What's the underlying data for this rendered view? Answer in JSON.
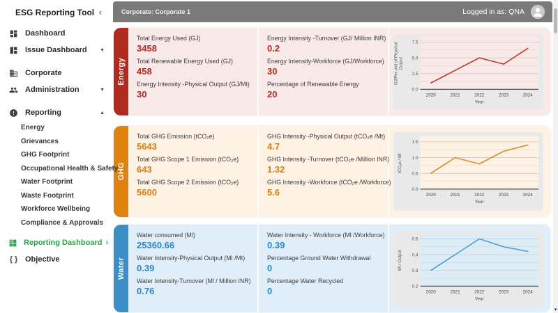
{
  "app": {
    "title": "ESG Reporting Tool",
    "collapse_icon": "‹"
  },
  "topbar": {
    "context_label": "Corporate: Corporate 1",
    "user_label": "Logged in as: QNA"
  },
  "sidebar": {
    "active_color": "#28a745",
    "items": [
      {
        "id": "dashboard",
        "label": "Dashboard",
        "icon": "dashboard-icon"
      },
      {
        "id": "issue-dashboard",
        "label": "Issue Dashboard",
        "icon": "issue-dashboard-icon",
        "chevron": "expand"
      },
      {
        "id": "corporate",
        "label": "Corporate",
        "icon": "corporate-icon",
        "gap_before": true
      },
      {
        "id": "administration",
        "label": "Administration",
        "icon": "administration-icon",
        "chevron": "expand"
      },
      {
        "id": "reporting",
        "label": "Reporting",
        "icon": "reporting-icon",
        "chevron": "collapse",
        "gap_before": true
      }
    ],
    "reporting_children": [
      "Energy",
      "Grievances",
      "GHG Footprint",
      "Occupational Health & Safety",
      "Water Footprint",
      "Waste Footprint",
      "Workforce Wellbeing",
      "Compliance & Approvals"
    ],
    "footer_items": [
      {
        "id": "reporting-dashboard",
        "label": "Reporting Dashboard",
        "icon": "reporting-dashboard-icon",
        "arrow": "›",
        "active": true
      },
      {
        "id": "objective",
        "label": "Objective",
        "icon": "objective-icon"
      }
    ]
  },
  "cards": [
    {
      "id": "energy",
      "tab_label": "Energy",
      "accent": "#b02a20",
      "value_color": "#b22a22",
      "bg": "#fae9e9",
      "metrics": [
        [
          {
            "label": "Total Energy Used (GJ)",
            "value": "3458"
          },
          {
            "label": "Total Renewable Energy Used (GJ)",
            "value": "458"
          },
          {
            "label": "Energy Intensity -Physical Output (GJ/Mt)",
            "value": "30"
          }
        ],
        [
          {
            "label": "Energy Intensity -Turnover (GJ/ Million INR)",
            "value": "0.2"
          },
          {
            "label": "Energy Intensity-Workforce (GJ/Workforce)",
            "value": "30"
          },
          {
            "label": "Percentage of Renewable Energy",
            "value": "20"
          }
        ]
      ]
    },
    {
      "id": "ghg",
      "tab_label": "GHG",
      "accent": "#df820e",
      "value_color": "#d9820f",
      "bg": "#fdf2e3",
      "metrics": [
        [
          {
            "label": "Total GHG Emission (tCO₂e)",
            "value": "5643"
          },
          {
            "label": "Total GHG Scope 1 Emission (tCO₂e)",
            "value": "643"
          },
          {
            "label": "Total GHG Scope 2 Emission (tCO₂e)",
            "value": "5600"
          }
        ],
        [
          {
            "label": "GHG Intensity -Physical Output (tCO₂e /Mt)",
            "value": "4.7"
          },
          {
            "label": "GHG Intensity -Turnover (tCO₂e /Million INR)",
            "value": "1.32"
          },
          {
            "label": "GHG Intensity -Workforce (tCO₂e /Workforce)",
            "value": "5.6"
          }
        ]
      ]
    },
    {
      "id": "water",
      "tab_label": "Water",
      "accent": "#3b8ec6",
      "value_color": "#2d87c3",
      "bg": "#dfeef9",
      "metrics": [
        [
          {
            "label": "Water consumed (Ml)",
            "value": "25360.66"
          },
          {
            "label": "Water Intensity-Physical Output (Ml /Mt)",
            "value": "0.39"
          },
          {
            "label": "Water Intensity-Turnover (Ml / Million INR)",
            "value": "0.76"
          }
        ],
        [
          {
            "label": "Water Intensity - Workforce (Ml /Workforce)",
            "value": "0.39"
          },
          {
            "label": "Percentage Ground Water Withdrawal",
            "value": "0"
          },
          {
            "label": "Percentage Water Recycled",
            "value": "0"
          }
        ]
      ]
    }
  ],
  "chart_data": [
    {
      "id": "energy-trend",
      "type": "line",
      "x": [
        2020,
        2021,
        2022,
        2023,
        2024
      ],
      "values": [
        1.0,
        3.0,
        5.0,
        4.0,
        6.5
      ],
      "xlabel": "Year",
      "ylabel": "GJ/Per unit of Physical Output",
      "ylabel_lines": [
        "GJ/Per unit of Physical",
        "Output"
      ],
      "ylim": [
        0,
        7.5
      ],
      "yticks": [
        0,
        2.5,
        5,
        7.5
      ],
      "ytick_labels": [
        "0.0",
        "2.5",
        "5.0",
        "7.5"
      ],
      "minor_gridlines": [
        1.25,
        3.75,
        6.25
      ],
      "grid": true,
      "legend": false,
      "line_color": "#c0392b",
      "plot_bg": "#fae9e9",
      "panel_bg": "#e9e9e9"
    },
    {
      "id": "ghg-trend",
      "type": "line",
      "x": [
        2020,
        2021,
        2022,
        2023,
        2024
      ],
      "values": [
        0.5,
        1.0,
        0.8,
        1.2,
        1.4
      ],
      "xlabel": "Year",
      "ylabel": "tCO₂e / Mt",
      "ylabel_lines": [
        "tCO₂e / Mt"
      ],
      "ylim": [
        0,
        1.5
      ],
      "yticks": [
        0,
        0.5,
        1,
        1.5
      ],
      "ytick_labels": [
        "0.0",
        "0.5",
        "1.0",
        "1.5"
      ],
      "minor_gridlines": [
        0.25,
        0.75,
        1.25
      ],
      "grid": true,
      "legend": false,
      "line_color": "#e0882a",
      "plot_bg": "#fdf2e3",
      "panel_bg": "#e9e9e9"
    },
    {
      "id": "water-trend",
      "type": "line",
      "x": [
        2020,
        2021,
        2022,
        2023,
        2024
      ],
      "values": [
        0.3,
        0.4,
        0.5,
        0.45,
        0.42
      ],
      "xlabel": "Year",
      "ylabel": "Ml / Output",
      "ylabel_lines": [
        "Ml / Output"
      ],
      "ylim": [
        0.2,
        0.5
      ],
      "yticks": [
        0.2,
        0.3,
        0.4,
        0.5
      ],
      "ytick_labels": [
        "0.2",
        "0.3",
        "0.4",
        "0.5"
      ],
      "minor_gridlines": [
        0.25,
        0.35,
        0.45
      ],
      "grid": true,
      "legend": false,
      "line_color": "#4a9fd1",
      "plot_bg": "#ddedf8",
      "panel_bg": "#e9e9e9"
    }
  ]
}
